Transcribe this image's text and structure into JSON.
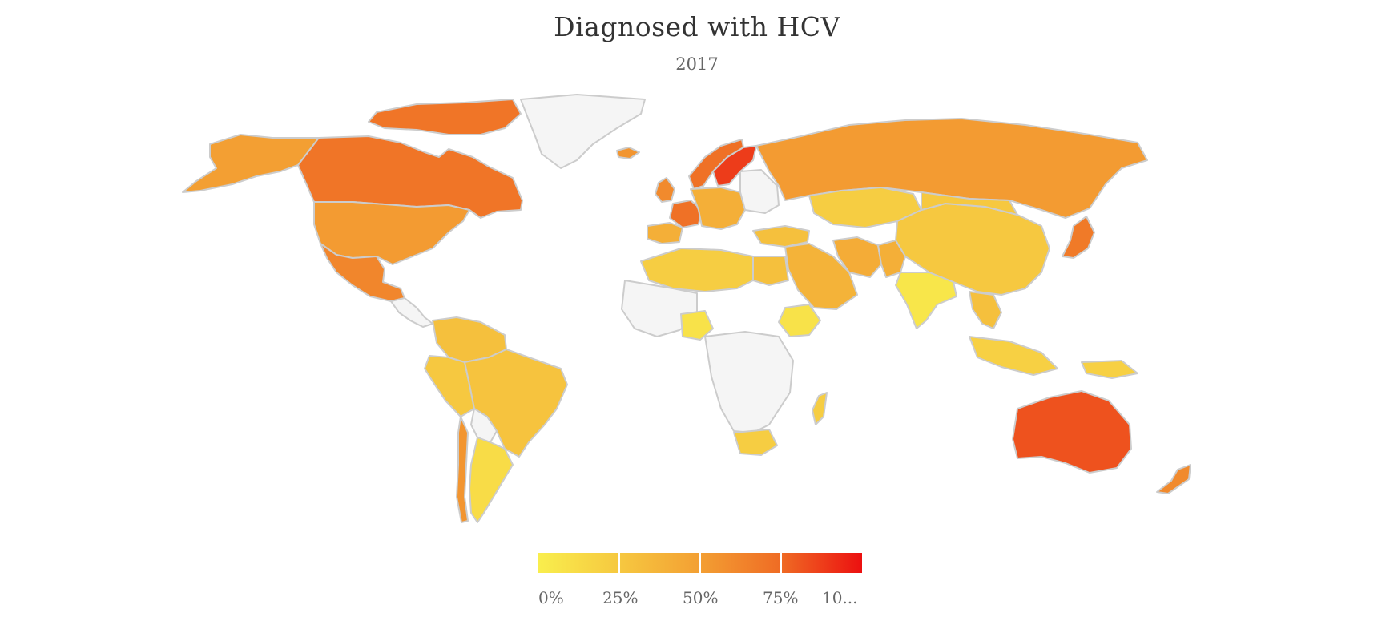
{
  "title": "Diagnosed with HCV",
  "subtitle": "2017",
  "legend": {
    "labels": [
      "0%",
      "25%",
      "50%",
      "75%",
      "10..."
    ],
    "color_stops": [
      "#f9ee4d",
      "#f6c840",
      "#f39f33",
      "#ef6b24",
      "#ec1010"
    ]
  },
  "colors": {
    "no_data": "#f5f5f5",
    "border": "#cccccc"
  },
  "chart_data": {
    "type": "choropleth",
    "title": "Diagnosed with HCV",
    "subtitle": "2017",
    "value_range": [
      0,
      100
    ],
    "regions": [
      {
        "name": "Canada",
        "value": 70
      },
      {
        "name": "Alaska",
        "value": 50
      },
      {
        "name": "Canadian Arctic Islands",
        "value": 70
      },
      {
        "name": "Greenland",
        "value": null
      },
      {
        "name": "United States",
        "value": 52
      },
      {
        "name": "Mexico",
        "value": 62
      },
      {
        "name": "Central America",
        "value": null
      },
      {
        "name": "Colombia / Venezuela",
        "value": 30
      },
      {
        "name": "Peru",
        "value": 25
      },
      {
        "name": "Brazil",
        "value": 28
      },
      {
        "name": "Bolivia",
        "value": null
      },
      {
        "name": "Argentina",
        "value": 12
      },
      {
        "name": "Chile",
        "value": 55
      },
      {
        "name": "Iceland",
        "value": 55
      },
      {
        "name": "Norway",
        "value": 72
      },
      {
        "name": "Sweden / Finland",
        "value": 88
      },
      {
        "name": "United Kingdom",
        "value": 60
      },
      {
        "name": "France",
        "value": 72
      },
      {
        "name": "Central Europe",
        "value": 40
      },
      {
        "name": "Eastern Europe",
        "value": null
      },
      {
        "name": "Spain / Portugal",
        "value": 40
      },
      {
        "name": "Russia",
        "value": 52
      },
      {
        "name": "Kazakhstan",
        "value": 22
      },
      {
        "name": "China",
        "value": 25
      },
      {
        "name": "Mongolia",
        "value": 25
      },
      {
        "name": "Japan",
        "value": 68
      },
      {
        "name": "Turkey",
        "value": 30
      },
      {
        "name": "Middle East",
        "value": 38
      },
      {
        "name": "Iran",
        "value": 42
      },
      {
        "name": "Pakistan",
        "value": 40
      },
      {
        "name": "India",
        "value": 5
      },
      {
        "name": "Southeast Asia",
        "value": 30
      },
      {
        "name": "Indonesia",
        "value": 20
      },
      {
        "name": "North Africa",
        "value": 22
      },
      {
        "name": "Egypt",
        "value": 30
      },
      {
        "name": "West Africa",
        "value": null
      },
      {
        "name": "Nigeria",
        "value": 8
      },
      {
        "name": "Ethiopia",
        "value": 8
      },
      {
        "name": "Central Africa",
        "value": null
      },
      {
        "name": "South Africa",
        "value": 22
      },
      {
        "name": "Madagascar",
        "value": 22
      },
      {
        "name": "Australia",
        "value": 82
      },
      {
        "name": "New Zealand",
        "value": 60
      },
      {
        "name": "Papua New Guinea",
        "value": 20
      }
    ]
  }
}
